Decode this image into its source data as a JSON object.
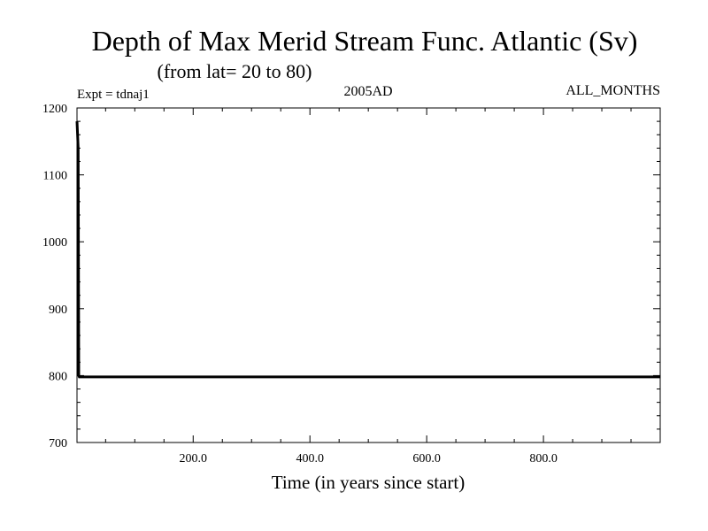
{
  "chart_data": {
    "type": "line",
    "title": "Depth of Max Merid Stream Func. Atlantic (Sv)",
    "subtitle": "(from lat= 20 to 80)",
    "annotations": {
      "left": "Expt = tdnaj1",
      "center": "2005AD",
      "right": "ALL_MONTHS"
    },
    "xlabel": "Time (in years since start)",
    "ylabel": "",
    "xlim": [
      1,
      1000
    ],
    "ylim": [
      700,
      1200
    ],
    "x_ticks": [
      200,
      400,
      600,
      800
    ],
    "x_tick_labels": [
      "200.0",
      "400.0",
      "600.0",
      "800.0"
    ],
    "y_ticks": [
      700,
      800,
      900,
      1000,
      1100,
      1200
    ],
    "y_tick_labels": [
      "700",
      "800",
      "900",
      "1000",
      "1100",
      "1200"
    ],
    "grid": false,
    "series": [
      {
        "name": "depth",
        "x": [
          1,
          2,
          3,
          4,
          5,
          6,
          10,
          20,
          50,
          100,
          200,
          300,
          400,
          500,
          600,
          700,
          800,
          900,
          1000
        ],
        "values": [
          1180,
          1160,
          1140,
          800,
          798,
          798,
          798,
          798,
          798,
          798,
          798,
          798,
          798,
          798,
          798,
          798,
          798,
          798,
          798
        ]
      }
    ]
  }
}
